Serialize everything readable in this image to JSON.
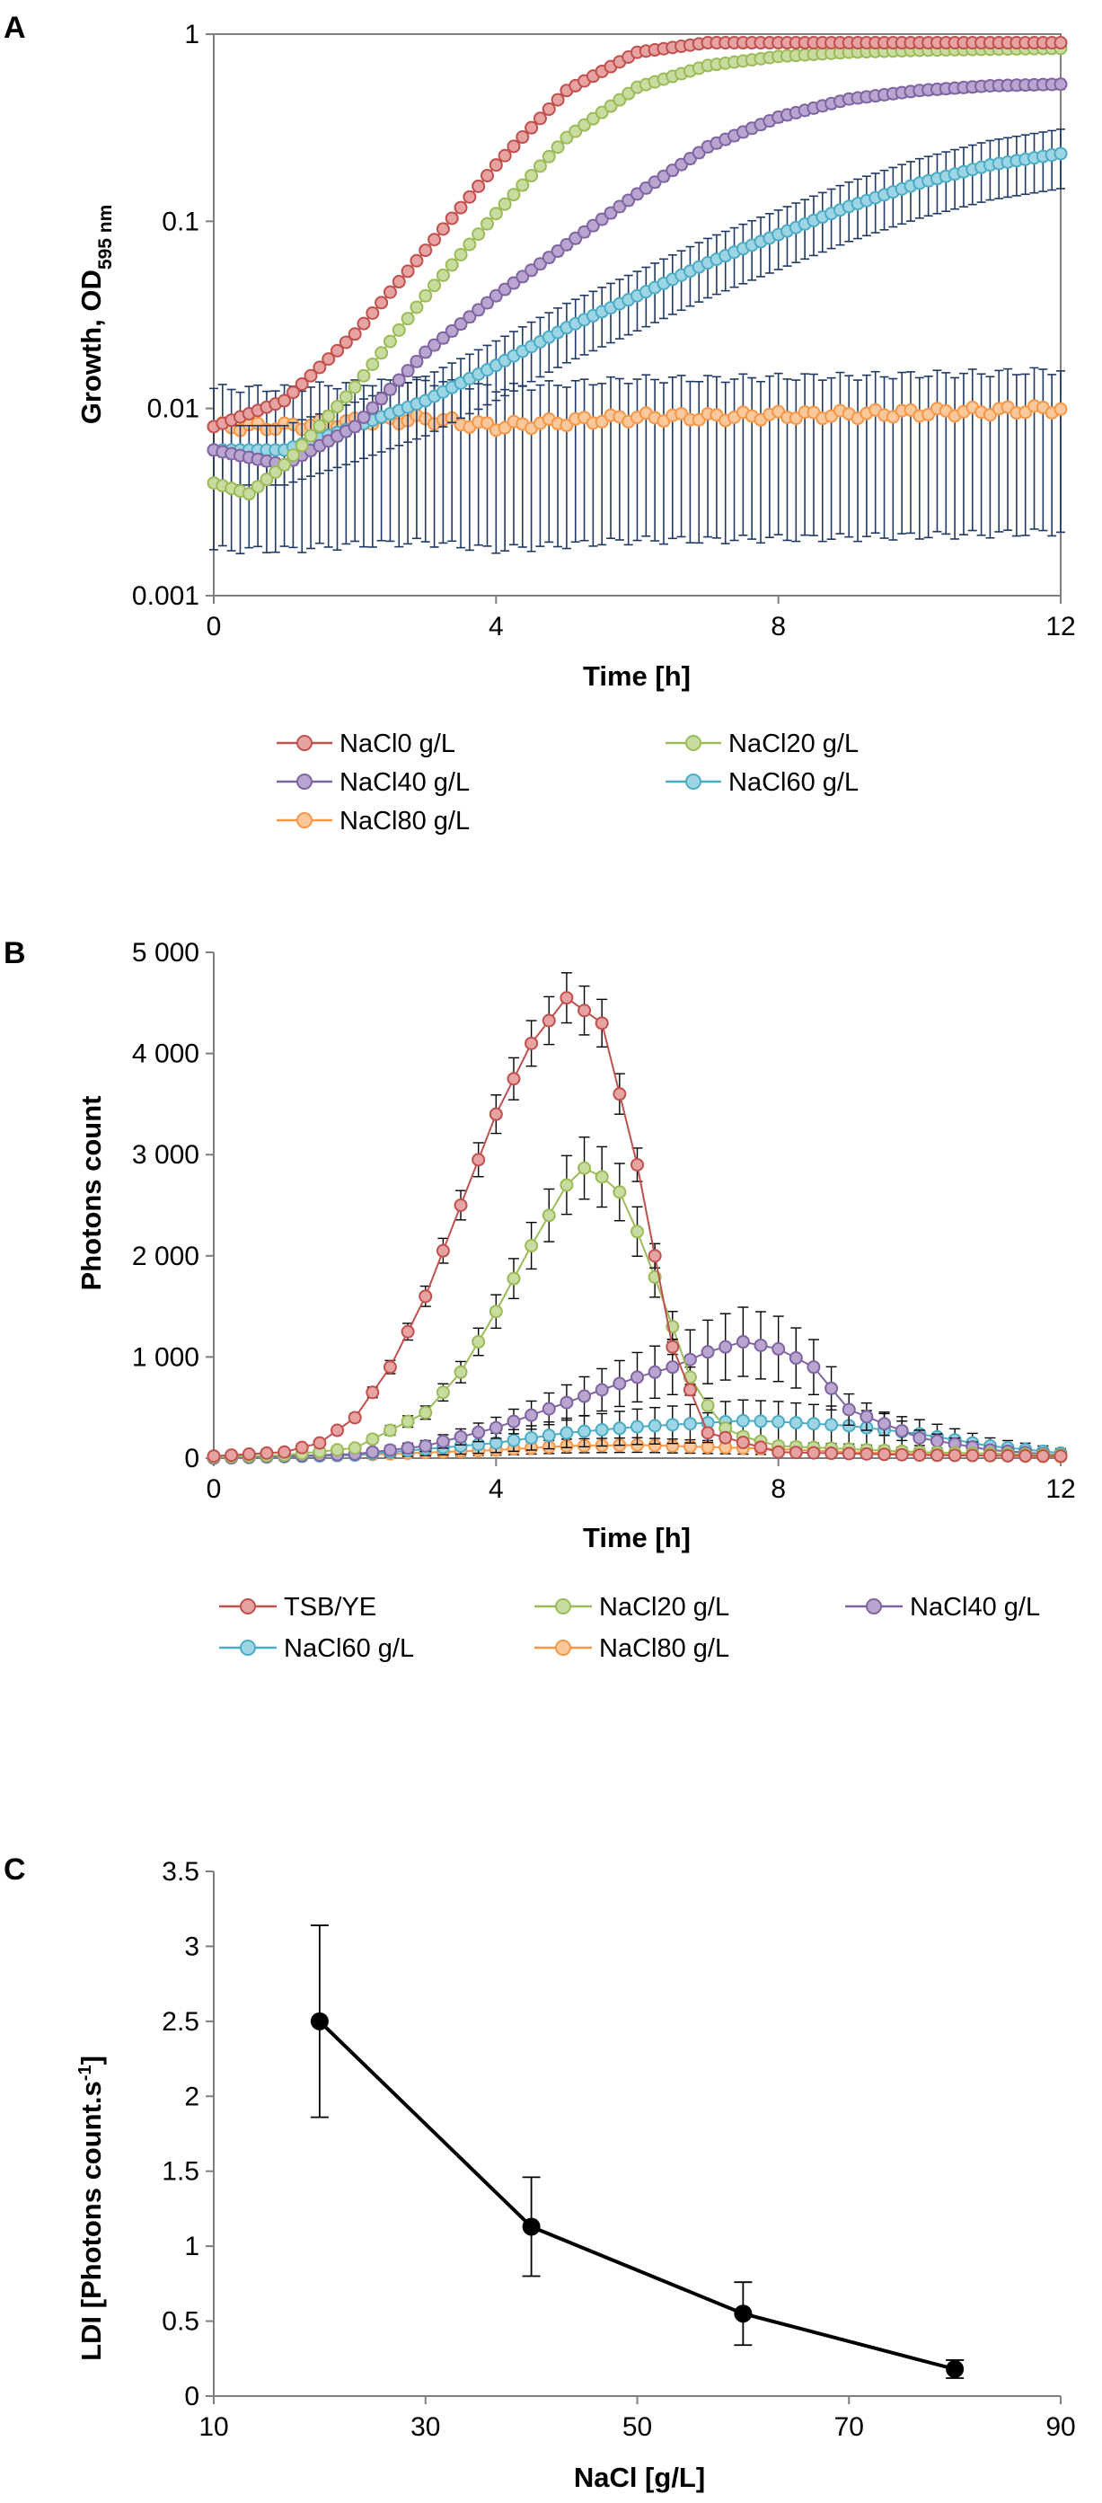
{
  "panels": [
    "A",
    "B",
    "C"
  ],
  "chart_data": [
    {
      "type": "line",
      "panel": "A",
      "yscale": "log",
      "xlabel": "Time [h]",
      "ylabel": "Growth, OD",
      "ylabel_sub": "595 nm",
      "xlim": [
        0,
        12
      ],
      "ylim": [
        0.001,
        1
      ],
      "xticks": [
        "0",
        "4",
        "8",
        "12"
      ],
      "yticks": [
        "0.001",
        "0.01",
        "0.1",
        "1"
      ],
      "legend_position": "bottom",
      "series": [
        {
          "name": "NaCl0 g/L",
          "color": "#c0504d",
          "fill": "#e6a3a1",
          "x": [
            0,
            1,
            2,
            3,
            4,
            5,
            6,
            7,
            8,
            9,
            10,
            11,
            12
          ],
          "y": [
            0.008,
            0.011,
            0.025,
            0.07,
            0.2,
            0.5,
            0.8,
            0.9,
            0.9,
            0.9,
            0.9,
            0.9,
            0.9
          ],
          "err_frac": 0.03
        },
        {
          "name": "NaCl20 g/L",
          "color": "#9bbb59",
          "fill": "#c9dca0",
          "x": [
            0,
            0.5,
            1,
            2,
            3,
            4,
            5,
            6,
            7,
            8,
            9,
            10,
            11,
            12
          ],
          "y": [
            0.004,
            0.0035,
            0.005,
            0.013,
            0.04,
            0.11,
            0.28,
            0.52,
            0.68,
            0.76,
            0.8,
            0.82,
            0.83,
            0.84
          ],
          "err_frac": 0.04
        },
        {
          "name": "NaCl40 g/L",
          "color": "#8064a2",
          "fill": "#b8a5d0",
          "x": [
            0,
            1,
            2,
            3,
            4,
            5,
            6,
            7,
            8,
            9,
            10,
            11,
            12
          ],
          "y": [
            0.006,
            0.005,
            0.008,
            0.02,
            0.04,
            0.075,
            0.14,
            0.25,
            0.36,
            0.45,
            0.5,
            0.53,
            0.54
          ],
          "err_frac": 0.06
        },
        {
          "name": "NaCl60 g/L",
          "color": "#4bacc6",
          "fill": "#9ed5e4",
          "x": [
            0,
            1,
            2,
            3,
            4,
            5,
            6,
            7,
            8,
            9,
            10,
            11,
            12
          ],
          "y": [
            0.006,
            0.006,
            0.008,
            0.011,
            0.017,
            0.027,
            0.04,
            0.06,
            0.085,
            0.12,
            0.16,
            0.2,
            0.23
          ],
          "err_frac": 0.35
        },
        {
          "name": "NaCl80 g/L",
          "color": "#f79646",
          "fill": "#fbc89c",
          "x": [
            0,
            1,
            2,
            3,
            4,
            5,
            6,
            7,
            8,
            9,
            10,
            11,
            12
          ],
          "y": [
            0.008,
            0.008,
            0.0085,
            0.0088,
            0.008,
            0.0085,
            0.009,
            0.009,
            0.0092,
            0.0093,
            0.0095,
            0.0097,
            0.01
          ],
          "err_frac": 0.6
        }
      ]
    },
    {
      "type": "line",
      "panel": "B",
      "xlabel": "Time [h]",
      "ylabel": "Photons count",
      "xlim": [
        0,
        12
      ],
      "ylim": [
        0,
        5000
      ],
      "xticks": [
        "0",
        "4",
        "8",
        "12"
      ],
      "yticks": [
        "0",
        "1 000",
        "2 000",
        "3 000",
        "4 000",
        "5 000"
      ],
      "legend_position": "bottom",
      "series": [
        {
          "name": "TSB/YE",
          "color": "#c0504d",
          "fill": "#e6a3a1",
          "x": [
            0,
            1,
            1.5,
            2,
            2.5,
            3,
            3.5,
            4,
            4.5,
            5,
            5.5,
            6,
            6.5,
            7,
            8,
            10,
            12
          ],
          "y": [
            20,
            60,
            150,
            400,
            900,
            1600,
            2500,
            3400,
            4100,
            4550,
            4300,
            2900,
            1100,
            250,
            60,
            30,
            20
          ],
          "err_frac": 0.05
        },
        {
          "name": "NaCl20 g/L",
          "color": "#9bbb59",
          "fill": "#c9dca0",
          "x": [
            0,
            1,
            2,
            3,
            3.5,
            4,
            4.5,
            5,
            5.3,
            5.8,
            6.3,
            6.8,
            7.3,
            8,
            10,
            12
          ],
          "y": [
            10,
            30,
            100,
            450,
            850,
            1450,
            2100,
            2700,
            2900,
            2600,
            1700,
            700,
            250,
            120,
            60,
            30
          ],
          "err_frac": 0.1
        },
        {
          "name": "NaCl40 g/L",
          "color": "#8064a2",
          "fill": "#b8a5d0",
          "x": [
            0,
            2,
            3,
            4,
            5,
            6,
            6.5,
            7,
            7.5,
            8,
            8.5,
            9,
            10,
            11,
            12
          ],
          "y": [
            0,
            40,
            120,
            300,
            550,
            800,
            900,
            1050,
            1150,
            1080,
            900,
            480,
            200,
            80,
            30
          ],
          "err_frac": 0.28
        },
        {
          "name": "NaCl60 g/L",
          "color": "#4bacc6",
          "fill": "#9ed5e4",
          "x": [
            0,
            2,
            4,
            5,
            6,
            7,
            7.5,
            8,
            9,
            10,
            11,
            12
          ],
          "y": [
            0,
            30,
            150,
            250,
            310,
            350,
            370,
            360,
            320,
            240,
            120,
            50
          ],
          "err_frac": 0.5
        },
        {
          "name": "NaCl80 g/L",
          "color": "#f79646",
          "fill": "#fbc89c",
          "x": [
            0,
            2,
            4,
            5,
            6,
            7,
            8,
            9,
            10,
            11,
            12
          ],
          "y": [
            0,
            30,
            80,
            120,
            130,
            110,
            90,
            60,
            40,
            25,
            15
          ],
          "err_frac": 0.4
        }
      ]
    },
    {
      "type": "line",
      "panel": "C",
      "xlabel": "NaCl [g/L]",
      "ylabel": "LDI [Photons count.s",
      "ylabel_sup": "-1",
      "ylabel_end": "]",
      "xlim": [
        10,
        90
      ],
      "ylim": [
        0,
        3.5
      ],
      "xticks": [
        "10",
        "30",
        "50",
        "70",
        "90"
      ],
      "yticks": [
        "0",
        "0.5",
        "1",
        "1.5",
        "2",
        "2.5",
        "3",
        "3.5"
      ],
      "series": [
        {
          "name": "LDI",
          "color": "#000000",
          "x": [
            20,
            40,
            60,
            80
          ],
          "y": [
            2.5,
            1.13,
            0.55,
            0.18
          ],
          "err": [
            0.64,
            0.33,
            0.21,
            0.06
          ]
        }
      ]
    }
  ]
}
